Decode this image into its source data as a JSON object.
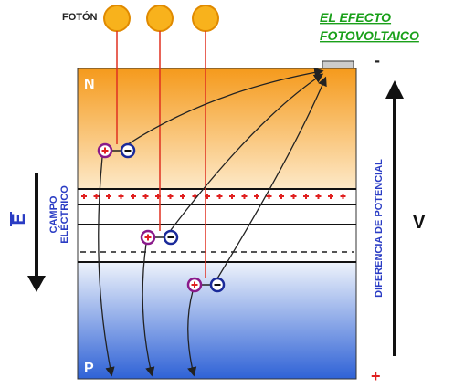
{
  "photon_label": "FOTÓN",
  "title": [
    "EL EFECTO",
    "FOTOVOLTAICO"
  ],
  "regions": {
    "n": "N",
    "p": "P"
  },
  "field": {
    "symbol": "E",
    "label": [
      "CAMPO",
      "ELÉCTRICO"
    ]
  },
  "potential": {
    "label": "DIFERENCIA DE POTENCIAL",
    "symbol": "V",
    "negative": "-",
    "positive": "+"
  }
}
